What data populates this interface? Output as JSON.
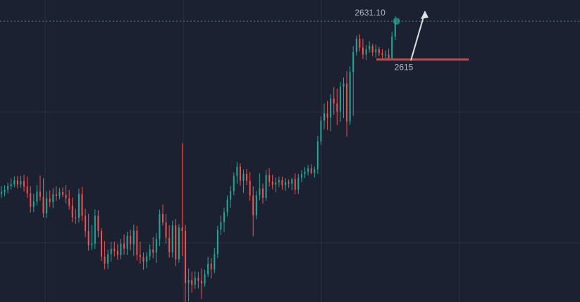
{
  "chart_data": {
    "type": "candlestick",
    "title": "",
    "xlabel": "",
    "ylabel": "",
    "ylim": [
      2513,
      2640
    ],
    "grid": true,
    "colors": {
      "background": "#1b2130",
      "up": "#26a69a",
      "down": "#ef5350",
      "grid": "#253042",
      "level_line": "#e53935",
      "arrow": "#e0e0e0"
    },
    "last_price": 2631.1,
    "last_price_label": "2631.10",
    "level": 2615,
    "level_label": "2615",
    "candles": [
      [
        2558.4,
        2561.8,
        2556.9,
        2559.3
      ],
      [
        2559.3,
        2562.1,
        2557.5,
        2560.2
      ],
      [
        2560.2,
        2563.2,
        2558.7,
        2561.8
      ],
      [
        2561.8,
        2564.9,
        2560.3,
        2562.6
      ],
      [
        2562.6,
        2565.8,
        2561.2,
        2564.1
      ],
      [
        2564.1,
        2566.0,
        2560.8,
        2562.4
      ],
      [
        2562.4,
        2566.1,
        2561.0,
        2563.9
      ],
      [
        2563.9,
        2566.5,
        2559.5,
        2561.6
      ],
      [
        2561.6,
        2565.8,
        2556.8,
        2558.7
      ],
      [
        2558.7,
        2561.7,
        2550.6,
        2553.0
      ],
      [
        2553.0,
        2558.5,
        2550.8,
        2555.3
      ],
      [
        2555.3,
        2562.2,
        2553.6,
        2559.4
      ],
      [
        2559.4,
        2566.2,
        2555.6,
        2557.2
      ],
      [
        2557.2,
        2565.1,
        2548.5,
        2550.3
      ],
      [
        2550.3,
        2559.5,
        2548.4,
        2556.6
      ],
      [
        2556.6,
        2560.0,
        2553.0,
        2555.0
      ],
      [
        2555.0,
        2560.8,
        2552.5,
        2558.3
      ],
      [
        2558.3,
        2561.7,
        2555.5,
        2557.6
      ],
      [
        2557.6,
        2561.0,
        2556.2,
        2559.2
      ],
      [
        2559.2,
        2561.2,
        2557.1,
        2558.1
      ],
      [
        2558.1,
        2562.2,
        2554.5,
        2556.6
      ],
      [
        2556.6,
        2560.1,
        2551.9,
        2553.5
      ],
      [
        2553.5,
        2556.9,
        2546.6,
        2548.6
      ],
      [
        2548.6,
        2552.2,
        2545.8,
        2548.4
      ],
      [
        2548.4,
        2560.6,
        2546.4,
        2558.5
      ],
      [
        2558.5,
        2561.4,
        2547.0,
        2549.3
      ],
      [
        2549.3,
        2552.2,
        2540.3,
        2542.8
      ],
      [
        2542.8,
        2550.1,
        2534.6,
        2536.9
      ],
      [
        2536.9,
        2545.4,
        2534.9,
        2537.5
      ],
      [
        2537.5,
        2552.0,
        2535.2,
        2549.3
      ],
      [
        2549.3,
        2551.6,
        2540.2,
        2542.9
      ],
      [
        2542.9,
        2544.0,
        2530.2,
        2532.1
      ],
      [
        2532.1,
        2538.6,
        2526.8,
        2529.1
      ],
      [
        2529.1,
        2535.0,
        2526.9,
        2533.1
      ],
      [
        2533.1,
        2538.3,
        2530.0,
        2535.4
      ],
      [
        2535.4,
        2538.4,
        2532.1,
        2534.5
      ],
      [
        2534.5,
        2537.3,
        2530.8,
        2532.7
      ],
      [
        2532.7,
        2539.5,
        2531.0,
        2537.5
      ],
      [
        2537.5,
        2541.4,
        2532.9,
        2535.4
      ],
      [
        2535.4,
        2542.6,
        2532.8,
        2540.8
      ],
      [
        2540.8,
        2543.3,
        2534.8,
        2537.3
      ],
      [
        2537.3,
        2545.6,
        2532.4,
        2543.0
      ],
      [
        2543.0,
        2545.0,
        2530.5,
        2532.8
      ],
      [
        2532.8,
        2538.4,
        2529.1,
        2531.9
      ],
      [
        2531.9,
        2533.8,
        2526.6,
        2530.0
      ],
      [
        2530.0,
        2534.0,
        2527.2,
        2532.2
      ],
      [
        2532.2,
        2537.2,
        2530.6,
        2535.1
      ],
      [
        2535.1,
        2540.3,
        2531.4,
        2533.8
      ],
      [
        2533.8,
        2542.0,
        2529.5,
        2539.5
      ],
      [
        2539.5,
        2551.9,
        2536.6,
        2550.0
      ],
      [
        2550.0,
        2554.0,
        2545.2,
        2546.5
      ],
      [
        2546.5,
        2550.0,
        2537.5,
        2540.0
      ],
      [
        2540.0,
        2545.3,
        2531.7,
        2533.9
      ],
      [
        2533.9,
        2547.2,
        2531.8,
        2545.2
      ],
      [
        2545.2,
        2547.9,
        2528.1,
        2531.0
      ],
      [
        2531.0,
        2545.8,
        2529.5,
        2544.3
      ],
      [
        2544.3,
        2579.8,
        2532.3,
        2542.9
      ],
      [
        2542.9,
        2545.4,
        2510.8,
        2521.0
      ],
      [
        2521.0,
        2527.1,
        2513.3,
        2522.2
      ],
      [
        2522.2,
        2525.7,
        2516.9,
        2520.2
      ],
      [
        2520.2,
        2525.9,
        2518.5,
        2523.2
      ],
      [
        2523.2,
        2525.6,
        2518.7,
        2521.9
      ],
      [
        2521.9,
        2527.1,
        2514.3,
        2520.8
      ],
      [
        2520.8,
        2526.6,
        2519.5,
        2524.7
      ],
      [
        2524.7,
        2532.0,
        2523.5,
        2529.1
      ],
      [
        2529.1,
        2531.4,
        2522.9,
        2526.8
      ],
      [
        2526.8,
        2535.8,
        2525.1,
        2533.2
      ],
      [
        2533.2,
        2545.1,
        2531.5,
        2543.4
      ],
      [
        2543.4,
        2549.4,
        2541.1,
        2546.6
      ],
      [
        2546.6,
        2552.7,
        2542.4,
        2550.7
      ],
      [
        2550.7,
        2557.8,
        2549.0,
        2556.0
      ],
      [
        2556.0,
        2561.7,
        2552.6,
        2559.6
      ],
      [
        2559.6,
        2567.5,
        2557.9,
        2566.0
      ],
      [
        2566.0,
        2571.9,
        2562.7,
        2569.9
      ],
      [
        2569.9,
        2571.2,
        2561.9,
        2564.0
      ],
      [
        2564.0,
        2568.7,
        2558.8,
        2566.9
      ],
      [
        2566.9,
        2568.9,
        2562.2,
        2564.0
      ],
      [
        2564.0,
        2567.6,
        2555.5,
        2557.8
      ],
      [
        2557.8,
        2561.7,
        2540.6,
        2549.5
      ],
      [
        2549.5,
        2559.7,
        2547.8,
        2557.9
      ],
      [
        2557.9,
        2567.1,
        2555.8,
        2560.7
      ],
      [
        2560.7,
        2562.8,
        2554.4,
        2556.8
      ],
      [
        2556.8,
        2568.6,
        2555.5,
        2566.4
      ],
      [
        2566.4,
        2569.3,
        2561.6,
        2563.6
      ],
      [
        2563.6,
        2566.5,
        2560.4,
        2562.3
      ],
      [
        2562.3,
        2565.4,
        2559.1,
        2563.3
      ],
      [
        2563.3,
        2565.7,
        2561.3,
        2564.2
      ],
      [
        2564.2,
        2565.7,
        2560.2,
        2562.1
      ],
      [
        2562.1,
        2565.1,
        2559.7,
        2563.4
      ],
      [
        2563.4,
        2564.6,
        2561.0,
        2562.8
      ],
      [
        2562.8,
        2565.2,
        2560.0,
        2564.6
      ],
      [
        2564.6,
        2567.1,
        2558.3,
        2560.2
      ],
      [
        2560.2,
        2566.9,
        2558.4,
        2565.2
      ],
      [
        2565.2,
        2568.5,
        2563.4,
        2566.8
      ],
      [
        2566.8,
        2569.7,
        2565.1,
        2567.7
      ],
      [
        2567.7,
        2570.6,
        2566.2,
        2569.2
      ],
      [
        2569.2,
        2571.0,
        2566.7,
        2567.3
      ],
      [
        2567.3,
        2569.9,
        2565.4,
        2568.8
      ],
      [
        2568.8,
        2582.9,
        2566.9,
        2580.5
      ],
      [
        2580.5,
        2591.1,
        2579.1,
        2589.3
      ],
      [
        2589.3,
        2596.4,
        2585.6,
        2592.3
      ],
      [
        2592.3,
        2597.5,
        2585.4,
        2590.5
      ],
      [
        2590.5,
        2600.4,
        2584.8,
        2598.6
      ],
      [
        2598.6,
        2603.4,
        2591.7,
        2596.5
      ],
      [
        2596.5,
        2602.7,
        2587.5,
        2593.1
      ],
      [
        2593.1,
        2605.6,
        2588.8,
        2603.5
      ],
      [
        2603.5,
        2607.4,
        2590.3,
        2604.9
      ],
      [
        2604.9,
        2610.1,
        2582.5,
        2588.9
      ],
      [
        2588.9,
        2612.1,
        2587.4,
        2609.7
      ],
      [
        2609.7,
        2620.6,
        2591.3,
        2618.1
      ],
      [
        2618.1,
        2625.0,
        2616.7,
        2623.7
      ],
      [
        2623.7,
        2625.6,
        2618.4,
        2620.0
      ],
      [
        2620.0,
        2623.7,
        2615.2,
        2617.1
      ],
      [
        2617.1,
        2621.0,
        2614.7,
        2619.4
      ],
      [
        2619.4,
        2622.6,
        2617.9,
        2620.6
      ],
      [
        2620.6,
        2621.5,
        2616.3,
        2618.0
      ],
      [
        2618.0,
        2621.3,
        2615.8,
        2619.3
      ],
      [
        2619.3,
        2620.3,
        2616.3,
        2617.6
      ],
      [
        2617.6,
        2619.3,
        2614.8,
        2616.9
      ],
      [
        2616.9,
        2618.8,
        2614.9,
        2617.0
      ],
      [
        2617.0,
        2619.5,
        2614.5,
        2615.5
      ],
      [
        2615.5,
        2626.7,
        2614.8,
        2624.6
      ],
      [
        2624.6,
        2633.2,
        2623.1,
        2631.1
      ]
    ]
  }
}
